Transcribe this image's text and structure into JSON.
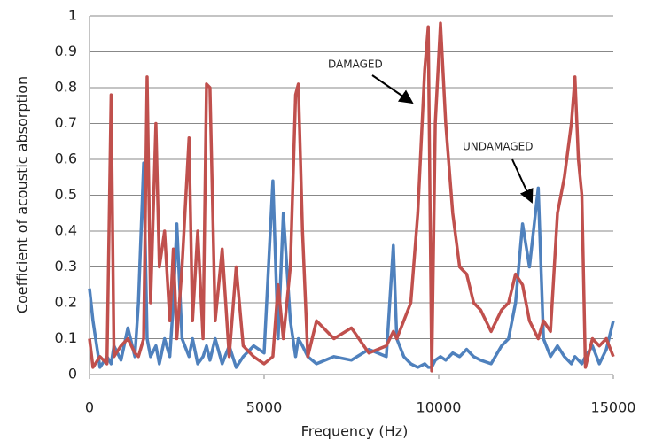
{
  "chart_data": {
    "type": "line",
    "x_label": "Frequency (Hz)",
    "y_label": "Coefficient of acoustic absorption",
    "xlim": [
      0,
      15000
    ],
    "xticks": [
      0,
      5000,
      10000,
      15000
    ],
    "ylim": [
      0,
      1
    ],
    "yticks": [
      0,
      0.1,
      0.2,
      0.3,
      0.4,
      0.5,
      0.6,
      0.7,
      0.8,
      0.9,
      1
    ],
    "grid": true,
    "x": [
      0,
      100,
      300,
      500,
      620,
      700,
      900,
      1100,
      1300,
      1400,
      1550,
      1650,
      1750,
      1900,
      2000,
      2150,
      2300,
      2400,
      2500,
      2650,
      2850,
      2950,
      3100,
      3250,
      3350,
      3450,
      3600,
      3800,
      4000,
      4200,
      4400,
      4700,
      5000,
      5250,
      5400,
      5550,
      5750,
      5900,
      5980,
      6100,
      6250,
      6500,
      7000,
      7500,
      8000,
      8500,
      8700,
      8800,
      9000,
      9200,
      9400,
      9600,
      9700,
      9800,
      9900,
      10050,
      10200,
      10400,
      10600,
      10800,
      11000,
      11200,
      11500,
      11800,
      12000,
      12200,
      12400,
      12600,
      12850,
      13000,
      13200,
      13400,
      13600,
      13800,
      13900,
      14000,
      14100,
      14200,
      14400,
      14600,
      14800,
      15000
    ],
    "series": [
      {
        "name": "UNDAMAGED",
        "color": "#4f81bd",
        "values": [
          0.24,
          0.15,
          0.02,
          0.05,
          0.03,
          0.08,
          0.04,
          0.13,
          0.05,
          0.2,
          0.59,
          0.1,
          0.05,
          0.08,
          0.03,
          0.1,
          0.05,
          0.2,
          0.42,
          0.1,
          0.05,
          0.1,
          0.03,
          0.05,
          0.08,
          0.04,
          0.1,
          0.03,
          0.08,
          0.02,
          0.05,
          0.08,
          0.06,
          0.54,
          0.1,
          0.45,
          0.15,
          0.05,
          0.1,
          0.08,
          0.05,
          0.03,
          0.05,
          0.04,
          0.07,
          0.05,
          0.36,
          0.1,
          0.05,
          0.03,
          0.02,
          0.03,
          0.02,
          0.02,
          0.04,
          0.05,
          0.04,
          0.06,
          0.05,
          0.07,
          0.05,
          0.04,
          0.03,
          0.08,
          0.1,
          0.2,
          0.42,
          0.3,
          0.52,
          0.1,
          0.05,
          0.08,
          0.05,
          0.03,
          0.05,
          0.04,
          0.03,
          0.05,
          0.08,
          0.03,
          0.07,
          0.15
        ]
      },
      {
        "name": "DAMAGED",
        "color": "#c0504d",
        "values": [
          0.1,
          0.02,
          0.05,
          0.03,
          0.78,
          0.05,
          0.08,
          0.1,
          0.06,
          0.05,
          0.1,
          0.83,
          0.2,
          0.7,
          0.3,
          0.4,
          0.15,
          0.35,
          0.1,
          0.3,
          0.66,
          0.15,
          0.4,
          0.1,
          0.81,
          0.8,
          0.15,
          0.35,
          0.05,
          0.3,
          0.08,
          0.05,
          0.03,
          0.05,
          0.25,
          0.1,
          0.3,
          0.78,
          0.81,
          0.4,
          0.05,
          0.15,
          0.1,
          0.13,
          0.06,
          0.08,
          0.12,
          0.1,
          0.15,
          0.2,
          0.45,
          0.85,
          0.97,
          0.01,
          0.7,
          0.98,
          0.7,
          0.45,
          0.3,
          0.28,
          0.2,
          0.18,
          0.12,
          0.18,
          0.2,
          0.28,
          0.25,
          0.15,
          0.1,
          0.15,
          0.12,
          0.45,
          0.55,
          0.7,
          0.83,
          0.6,
          0.5,
          0.02,
          0.1,
          0.08,
          0.1,
          0.05
        ]
      }
    ]
  }
}
